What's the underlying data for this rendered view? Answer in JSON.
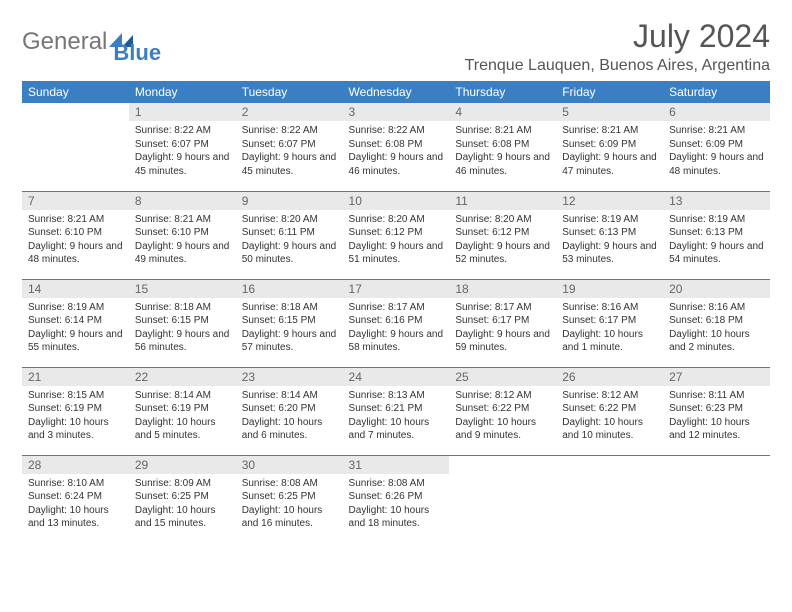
{
  "logo": {
    "part1": "General",
    "part2": "Blue"
  },
  "title": "July 2024",
  "location": "Trenque Lauquen, Buenos Aires, Argentina",
  "colors": {
    "brand": "#3a7fc4",
    "header_bg": "#3a7fc4",
    "daynum_bg": "#e9e9e9",
    "text": "#333333",
    "muted": "#767676"
  },
  "weekdays": [
    "Sunday",
    "Monday",
    "Tuesday",
    "Wednesday",
    "Thursday",
    "Friday",
    "Saturday"
  ],
  "weeks": [
    [
      {
        "n": "",
        "sr": "",
        "ss": "",
        "dl": ""
      },
      {
        "n": "1",
        "sr": "Sunrise: 8:22 AM",
        "ss": "Sunset: 6:07 PM",
        "dl": "Daylight: 9 hours and 45 minutes."
      },
      {
        "n": "2",
        "sr": "Sunrise: 8:22 AM",
        "ss": "Sunset: 6:07 PM",
        "dl": "Daylight: 9 hours and 45 minutes."
      },
      {
        "n": "3",
        "sr": "Sunrise: 8:22 AM",
        "ss": "Sunset: 6:08 PM",
        "dl": "Daylight: 9 hours and 46 minutes."
      },
      {
        "n": "4",
        "sr": "Sunrise: 8:21 AM",
        "ss": "Sunset: 6:08 PM",
        "dl": "Daylight: 9 hours and 46 minutes."
      },
      {
        "n": "5",
        "sr": "Sunrise: 8:21 AM",
        "ss": "Sunset: 6:09 PM",
        "dl": "Daylight: 9 hours and 47 minutes."
      },
      {
        "n": "6",
        "sr": "Sunrise: 8:21 AM",
        "ss": "Sunset: 6:09 PM",
        "dl": "Daylight: 9 hours and 48 minutes."
      }
    ],
    [
      {
        "n": "7",
        "sr": "Sunrise: 8:21 AM",
        "ss": "Sunset: 6:10 PM",
        "dl": "Daylight: 9 hours and 48 minutes."
      },
      {
        "n": "8",
        "sr": "Sunrise: 8:21 AM",
        "ss": "Sunset: 6:10 PM",
        "dl": "Daylight: 9 hours and 49 minutes."
      },
      {
        "n": "9",
        "sr": "Sunrise: 8:20 AM",
        "ss": "Sunset: 6:11 PM",
        "dl": "Daylight: 9 hours and 50 minutes."
      },
      {
        "n": "10",
        "sr": "Sunrise: 8:20 AM",
        "ss": "Sunset: 6:12 PM",
        "dl": "Daylight: 9 hours and 51 minutes."
      },
      {
        "n": "11",
        "sr": "Sunrise: 8:20 AM",
        "ss": "Sunset: 6:12 PM",
        "dl": "Daylight: 9 hours and 52 minutes."
      },
      {
        "n": "12",
        "sr": "Sunrise: 8:19 AM",
        "ss": "Sunset: 6:13 PM",
        "dl": "Daylight: 9 hours and 53 minutes."
      },
      {
        "n": "13",
        "sr": "Sunrise: 8:19 AM",
        "ss": "Sunset: 6:13 PM",
        "dl": "Daylight: 9 hours and 54 minutes."
      }
    ],
    [
      {
        "n": "14",
        "sr": "Sunrise: 8:19 AM",
        "ss": "Sunset: 6:14 PM",
        "dl": "Daylight: 9 hours and 55 minutes."
      },
      {
        "n": "15",
        "sr": "Sunrise: 8:18 AM",
        "ss": "Sunset: 6:15 PM",
        "dl": "Daylight: 9 hours and 56 minutes."
      },
      {
        "n": "16",
        "sr": "Sunrise: 8:18 AM",
        "ss": "Sunset: 6:15 PM",
        "dl": "Daylight: 9 hours and 57 minutes."
      },
      {
        "n": "17",
        "sr": "Sunrise: 8:17 AM",
        "ss": "Sunset: 6:16 PM",
        "dl": "Daylight: 9 hours and 58 minutes."
      },
      {
        "n": "18",
        "sr": "Sunrise: 8:17 AM",
        "ss": "Sunset: 6:17 PM",
        "dl": "Daylight: 9 hours and 59 minutes."
      },
      {
        "n": "19",
        "sr": "Sunrise: 8:16 AM",
        "ss": "Sunset: 6:17 PM",
        "dl": "Daylight: 10 hours and 1 minute."
      },
      {
        "n": "20",
        "sr": "Sunrise: 8:16 AM",
        "ss": "Sunset: 6:18 PM",
        "dl": "Daylight: 10 hours and 2 minutes."
      }
    ],
    [
      {
        "n": "21",
        "sr": "Sunrise: 8:15 AM",
        "ss": "Sunset: 6:19 PM",
        "dl": "Daylight: 10 hours and 3 minutes."
      },
      {
        "n": "22",
        "sr": "Sunrise: 8:14 AM",
        "ss": "Sunset: 6:19 PM",
        "dl": "Daylight: 10 hours and 5 minutes."
      },
      {
        "n": "23",
        "sr": "Sunrise: 8:14 AM",
        "ss": "Sunset: 6:20 PM",
        "dl": "Daylight: 10 hours and 6 minutes."
      },
      {
        "n": "24",
        "sr": "Sunrise: 8:13 AM",
        "ss": "Sunset: 6:21 PM",
        "dl": "Daylight: 10 hours and 7 minutes."
      },
      {
        "n": "25",
        "sr": "Sunrise: 8:12 AM",
        "ss": "Sunset: 6:22 PM",
        "dl": "Daylight: 10 hours and 9 minutes."
      },
      {
        "n": "26",
        "sr": "Sunrise: 8:12 AM",
        "ss": "Sunset: 6:22 PM",
        "dl": "Daylight: 10 hours and 10 minutes."
      },
      {
        "n": "27",
        "sr": "Sunrise: 8:11 AM",
        "ss": "Sunset: 6:23 PM",
        "dl": "Daylight: 10 hours and 12 minutes."
      }
    ],
    [
      {
        "n": "28",
        "sr": "Sunrise: 8:10 AM",
        "ss": "Sunset: 6:24 PM",
        "dl": "Daylight: 10 hours and 13 minutes."
      },
      {
        "n": "29",
        "sr": "Sunrise: 8:09 AM",
        "ss": "Sunset: 6:25 PM",
        "dl": "Daylight: 10 hours and 15 minutes."
      },
      {
        "n": "30",
        "sr": "Sunrise: 8:08 AM",
        "ss": "Sunset: 6:25 PM",
        "dl": "Daylight: 10 hours and 16 minutes."
      },
      {
        "n": "31",
        "sr": "Sunrise: 8:08 AM",
        "ss": "Sunset: 6:26 PM",
        "dl": "Daylight: 10 hours and 18 minutes."
      },
      {
        "n": "",
        "sr": "",
        "ss": "",
        "dl": ""
      },
      {
        "n": "",
        "sr": "",
        "ss": "",
        "dl": ""
      },
      {
        "n": "",
        "sr": "",
        "ss": "",
        "dl": ""
      }
    ]
  ]
}
